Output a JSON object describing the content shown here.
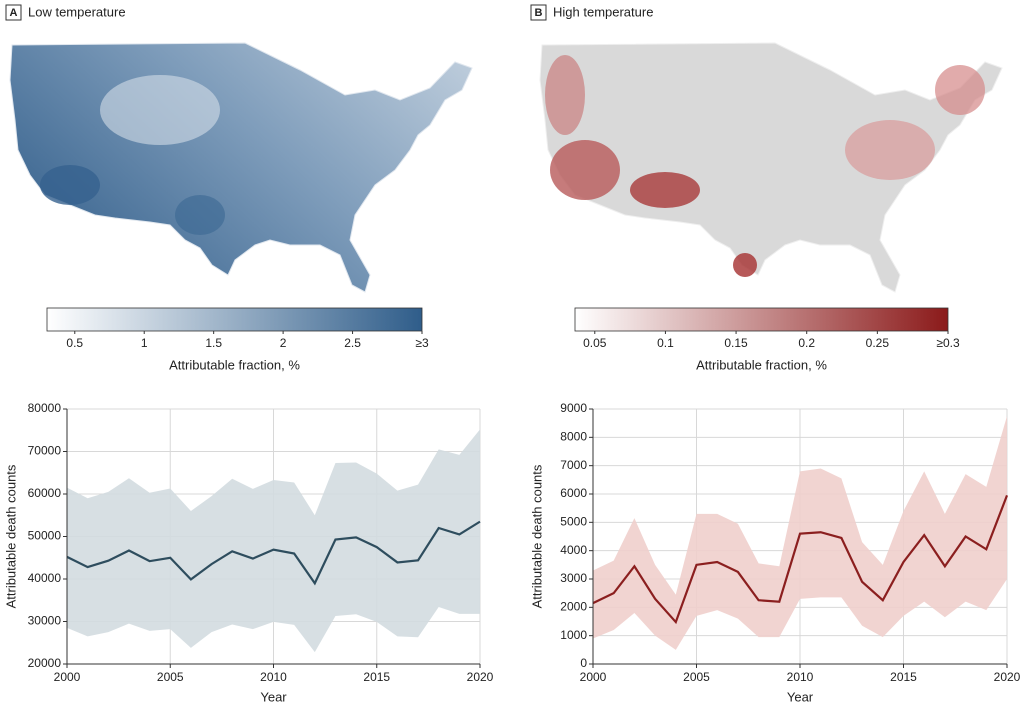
{
  "panels": [
    {
      "letter": "A",
      "title": "Low temperature"
    },
    {
      "letter": "B",
      "title": "High temperature"
    }
  ],
  "chart_data": [
    {
      "type": "colorbar",
      "colors": [
        "#ffffff",
        "#2f5d8a"
      ],
      "xlim": [
        0.3,
        3
      ],
      "xticks": [
        0.5,
        1,
        1.5,
        2,
        2.5,
        {
          "value": 3,
          "label": "≥3"
        }
      ],
      "x_label": "Attributable fraction, %"
    },
    {
      "type": "colorbar",
      "colors": [
        "#ffffff",
        "#8b1a1a"
      ],
      "xlim": [
        0.036,
        0.3
      ],
      "xticks": [
        0.05,
        0.1,
        0.15,
        0.2,
        0.25,
        {
          "value": 0.3,
          "label": "≥0.3"
        }
      ],
      "x_label": "Attributable fraction, %"
    },
    {
      "type": "line",
      "x": [
        2000,
        2001,
        2002,
        2003,
        2004,
        2005,
        2006,
        2007,
        2008,
        2009,
        2010,
        2011,
        2012,
        2013,
        2014,
        2015,
        2016,
        2017,
        2018,
        2019,
        2020
      ],
      "values": [
        45200,
        42800,
        44300,
        46700,
        44200,
        45000,
        39900,
        43500,
        46500,
        44800,
        46900,
        46000,
        39000,
        49300,
        49800,
        47500,
        43900,
        44400,
        52000,
        50500,
        53500
      ],
      "upper": [
        61500,
        59000,
        60500,
        63700,
        60300,
        61300,
        56000,
        59500,
        63600,
        61200,
        63300,
        62700,
        55000,
        67300,
        67400,
        64800,
        60800,
        62200,
        70500,
        69200,
        75200
      ],
      "lower": [
        28500,
        26500,
        27500,
        29500,
        27800,
        28200,
        23800,
        27500,
        29300,
        28200,
        29900,
        29200,
        22800,
        31300,
        31700,
        29900,
        26500,
        26300,
        33400,
        31800,
        31800
      ],
      "color": "#2e4d5e",
      "band_color": "#d3dbe0",
      "xlim": [
        2000,
        2020
      ],
      "xticks": [
        2000,
        2005,
        2010,
        2015,
        2020
      ],
      "ylim": [
        20000,
        80000
      ],
      "yticks": [
        20000,
        30000,
        40000,
        50000,
        60000,
        70000,
        80000
      ],
      "x_label": "Year",
      "y_label": "Attributable death counts",
      "grid": true
    },
    {
      "type": "line",
      "x": [
        2000,
        2001,
        2002,
        2003,
        2004,
        2005,
        2006,
        2007,
        2008,
        2009,
        2010,
        2011,
        2012,
        2013,
        2014,
        2015,
        2016,
        2017,
        2018,
        2019,
        2020
      ],
      "values": [
        2150,
        2500,
        3450,
        2300,
        1480,
        3500,
        3600,
        3250,
        2250,
        2200,
        4600,
        4650,
        4450,
        2900,
        2250,
        3600,
        4550,
        3450,
        4500,
        4050,
        5950
      ],
      "upper": [
        3300,
        3650,
        5150,
        3500,
        2450,
        5300,
        5300,
        4950,
        3550,
        3450,
        6800,
        6900,
        6550,
        4300,
        3500,
        5400,
        6800,
        5300,
        6700,
        6250,
        8750
      ],
      "lower": [
        900,
        1200,
        1800,
        1000,
        500,
        1700,
        1900,
        1600,
        950,
        950,
        2300,
        2350,
        2350,
        1350,
        950,
        1700,
        2200,
        1650,
        2200,
        1900,
        3000
      ],
      "color": "#8b1f1f",
      "band_color": "#efcfcc",
      "xlim": [
        2000,
        2020
      ],
      "xticks": [
        2000,
        2005,
        2010,
        2015,
        2020
      ],
      "ylim": [
        0,
        9000
      ],
      "yticks": [
        0,
        1000,
        2000,
        3000,
        4000,
        5000,
        6000,
        7000,
        8000,
        9000
      ],
      "x_label": "Year",
      "y_label": "Attributable death counts",
      "grid": true
    }
  ]
}
